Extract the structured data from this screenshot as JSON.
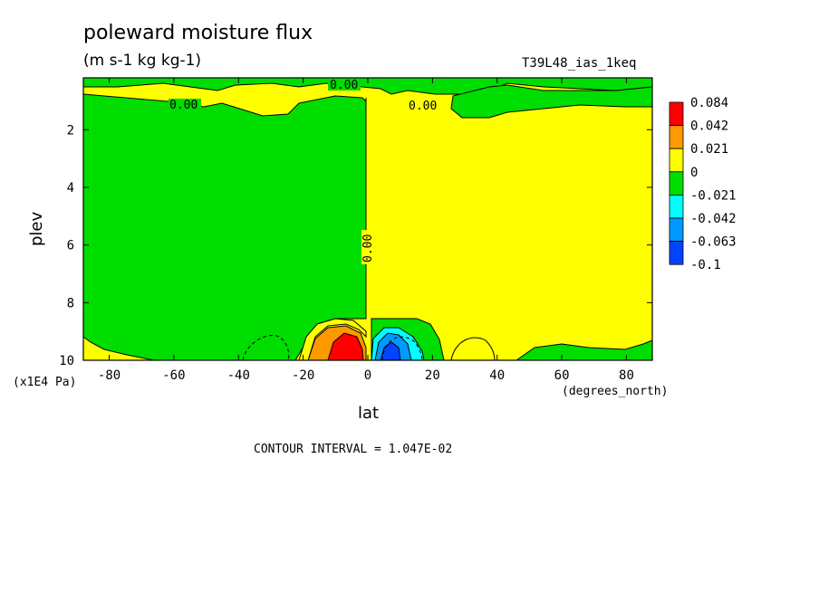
{
  "chart_data": {
    "type": "heatmap",
    "title": "poleward moisture flux",
    "units": "(m s-1 kg kg-1)",
    "run_label": "T39L48_ias_1keq",
    "xlabel": "lat",
    "x_unit_label": "(degrees_north)",
    "ylabel": "plev",
    "y_multiplier_label": "(x1E4 Pa)",
    "xlim": [
      -88,
      88
    ],
    "ylim": [
      10,
      0.2
    ],
    "x_ticks": [
      "-80",
      "-60",
      "-40",
      "-20",
      "0",
      "20",
      "40",
      "60",
      "80"
    ],
    "x_tick_values": [
      -80,
      -60,
      -40,
      -20,
      0,
      20,
      40,
      60,
      80
    ],
    "y_ticks": [
      "2",
      "4",
      "6",
      "8",
      "10"
    ],
    "y_tick_values": [
      2,
      4,
      6,
      8,
      10
    ],
    "contour_interval_text": "CONTOUR INTERVAL = 1.047E-02",
    "contour_labels": [
      "0.00",
      "0.00",
      "0.00",
      "0.00"
    ],
    "legend": {
      "levels": [
        "0.084",
        "0.042",
        "0.021",
        "0",
        "-0.021",
        "-0.042",
        "-0.063",
        "-0.1"
      ],
      "colors": [
        "#ff0000",
        "#ff9900",
        "#ffff00",
        "#00dd00",
        "#00ffff",
        "#0099ff",
        "#0044ff"
      ]
    },
    "regions": [
      {
        "name": "NH upper yellow / SH mid green",
        "sign": "see contours"
      },
      {
        "max_positive_near": {
          "lat": -5,
          "plev": 9.8
        },
        "value_range": [
          0.042,
          0.084
        ]
      },
      {
        "min_negative_near": {
          "lat": 5,
          "plev": 9.8
        },
        "value_range": [
          -0.063,
          -0.042
        ]
      }
    ]
  }
}
